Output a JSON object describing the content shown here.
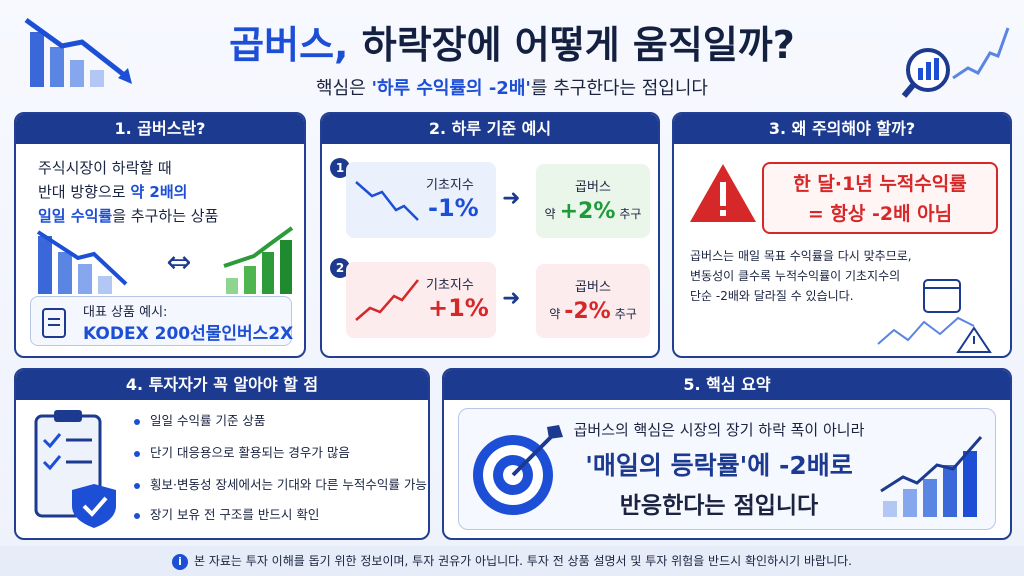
{
  "header": {
    "title": [
      "곱버스,",
      "하락장에 어떻게 움직일까?"
    ],
    "subtitle": [
      "핵심은",
      "'하루 수익률의 -2배'",
      "를 추구한다는 점입니다"
    ]
  },
  "section1": {
    "heading": "1. 곱버스란?",
    "lines": [
      "주식시장이 하락할 때",
      [
        "반대 방향으로",
        "약 2배의"
      ],
      [
        "일일 수익률",
        "을 추구하는 상품"
      ]
    ],
    "example_label": "대표 상품 예시:",
    "example_product": "KODEX 200선물인버스2X"
  },
  "section2": {
    "heading": "2. 하루 기준 예시",
    "examples": [
      {
        "number": "1",
        "index_label": "기초지수",
        "index_change": "-1%",
        "product_label": "곱버스",
        "approx": "약",
        "product_change": "+2%",
        "target": "추구"
      },
      {
        "number": "2",
        "index_label": "기초지수",
        "index_change": "+1%",
        "product_label": "곱버스",
        "approx": "약",
        "product_change": "-2%",
        "target": "추구"
      }
    ]
  },
  "section3": {
    "heading": "3. 왜 주의해야 할까?",
    "warning": [
      "한 달·1년 누적수익률",
      "= 항상 -2배 아님"
    ],
    "body": [
      "곱버스는 매일 목표 수익률을 다시 맞추므로,",
      "변동성이 클수록 누적수익률이 기초지수의",
      "단순 -2배와 달라질 수 있습니다."
    ]
  },
  "section4": {
    "heading": "4. 투자자가 꼭 알아야 할 점",
    "bullets": [
      "일일 수익률 기준 상품",
      "단기 대응용으로 활용되는 경우가 많음",
      "횡보·변동성 장세에서는 기대와 다른 누적수익률 가능",
      "장기 보유 전 구조를 반드시 확인"
    ]
  },
  "section5": {
    "heading": "5. 핵심 요약",
    "lines": [
      "곱버스의 핵심은 시장의 장기 하락 폭이 아니라",
      [
        "'매일의 등락률'",
        "에 -2배로"
      ],
      "반응한다는 점입니다"
    ]
  },
  "footer": {
    "icon": "i",
    "text": "본 자료는 투자 이해를 돕기 위한 정보이며, 투자 권유가 아닙니다. 투자 전 상품 설명서 및 투자 위험을 반드시 확인하시기 바랍니다."
  }
}
